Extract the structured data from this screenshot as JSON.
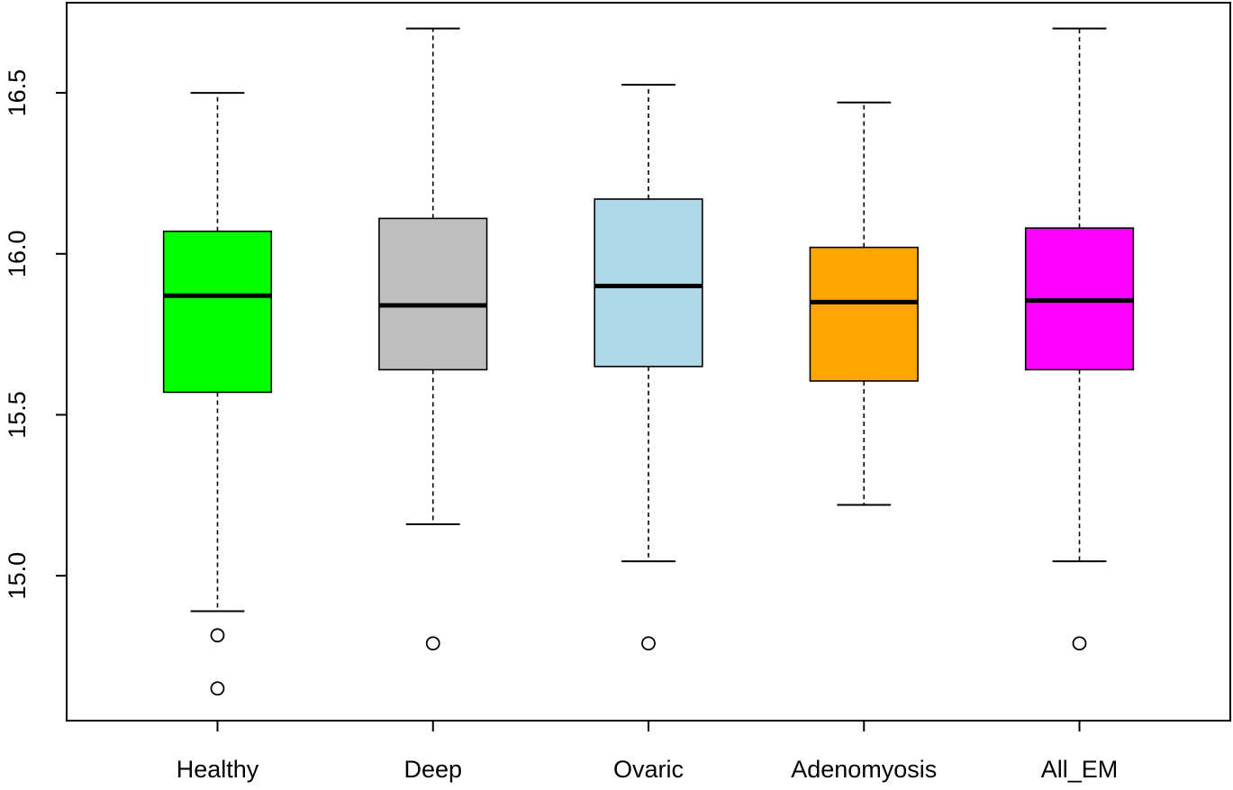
{
  "chart_data": {
    "type": "boxplot",
    "title": "",
    "xlabel": "",
    "ylabel": "",
    "ylim": [
      14.55,
      16.78
    ],
    "y_ticks": [
      {
        "value": 15.0,
        "label": "15.0"
      },
      {
        "value": 15.5,
        "label": "15.5"
      },
      {
        "value": 16.0,
        "label": "16.0"
      },
      {
        "value": 16.5,
        "label": "16.5"
      }
    ],
    "categories": [
      "Healthy",
      "Deep",
      "Ovaric",
      "Adenomyosis",
      "All_EM"
    ],
    "boxes": [
      {
        "category": "Healthy",
        "color": "#00ff00",
        "whisker_low": 14.89,
        "q1": 15.57,
        "median": 15.87,
        "q3": 16.07,
        "whisker_high": 16.5,
        "outliers": [
          14.815,
          14.65
        ]
      },
      {
        "category": "Deep",
        "color": "#bebebe",
        "whisker_low": 15.16,
        "q1": 15.64,
        "median": 15.84,
        "q3": 16.11,
        "whisker_high": 16.7,
        "outliers": [
          14.79
        ]
      },
      {
        "category": "Ovaric",
        "color": "#add8e6",
        "whisker_low": 15.045,
        "q1": 15.65,
        "median": 15.9,
        "q3": 16.17,
        "whisker_high": 16.525,
        "outliers": [
          14.79
        ]
      },
      {
        "category": "Adenomyosis",
        "color": "#ffa500",
        "whisker_low": 15.22,
        "q1": 15.605,
        "median": 15.85,
        "q3": 16.02,
        "whisker_high": 16.47,
        "outliers": []
      },
      {
        "category": "All_EM",
        "color": "#ff00ff",
        "whisker_low": 15.045,
        "q1": 15.64,
        "median": 15.855,
        "q3": 16.08,
        "whisker_high": 16.7,
        "outliers": [
          14.79
        ]
      }
    ]
  }
}
